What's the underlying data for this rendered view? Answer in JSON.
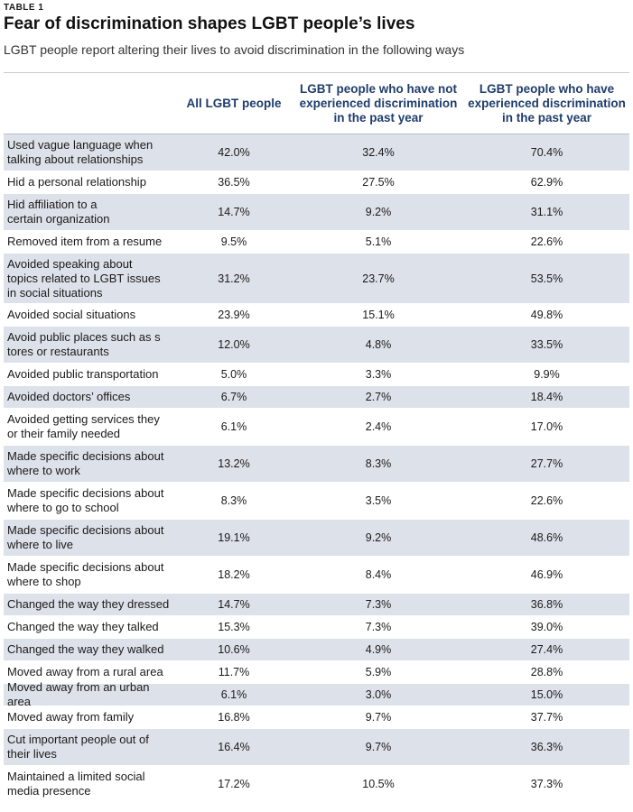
{
  "table_label": "TABLE 1",
  "title": "Fear of discrimination shapes LGBT people’s lives",
  "subtitle": "LGBT people report altering their lives to avoid discrimination in the following ways",
  "columns": {
    "all": "All LGBT people",
    "not_experienced": "LGBT people who have not\nexperienced discrimination\nin the past year",
    "experienced": "LGBT people who have\nexperienced discrimination\nin the past year"
  },
  "colors": {
    "header_text": "#1f3d6b",
    "alt_row": "#dde1e9"
  },
  "rows": [
    {
      "label": "Used vague language when\ntalking about relationships",
      "all": "42.0%",
      "not": "32.4%",
      "exp": "70.4%"
    },
    {
      "label": "Hid a personal relationship",
      "all": "36.5%",
      "not": "27.5%",
      "exp": "62.9%"
    },
    {
      "label": "Hid affiliation to a\ncertain organization",
      "all": "14.7%",
      "not": "9.2%",
      "exp": "31.1%"
    },
    {
      "label": "Removed item from a resume",
      "all": "9.5%",
      "not": "5.1%",
      "exp": "22.6%"
    },
    {
      "label": "Avoided speaking about\ntopics related to LGBT issues\nin social situations",
      "all": "31.2%",
      "not": "23.7%",
      "exp": "53.5%"
    },
    {
      "label": "Avoided social situations",
      "all": "23.9%",
      "not": "15.1%",
      "exp": "49.8%"
    },
    {
      "label": "Avoid public places such as s\ntores or restaurants",
      "all": "12.0%",
      "not": "4.8%",
      "exp": "33.5%"
    },
    {
      "label": "Avoided public transportation",
      "all": "5.0%",
      "not": "3.3%",
      "exp": "9.9%"
    },
    {
      "label": "Avoided doctors’ offices",
      "all": "6.7%",
      "not": "2.7%",
      "exp": "18.4%"
    },
    {
      "label": "Avoided getting services they\nor their family needed",
      "all": "6.1%",
      "not": "2.4%",
      "exp": "17.0%"
    },
    {
      "label": "Made specific decisions about\nwhere to work",
      "all": "13.2%",
      "not": "8.3%",
      "exp": "27.7%"
    },
    {
      "label": "Made specific decisions about\nwhere to go to school",
      "all": "8.3%",
      "not": "3.5%",
      "exp": "22.6%"
    },
    {
      "label": "Made specific decisions about\nwhere to live",
      "all": "19.1%",
      "not": "9.2%",
      "exp": "48.6%"
    },
    {
      "label": "Made specific decisions about\nwhere to shop",
      "all": "18.2%",
      "not": "8.4%",
      "exp": "46.9%"
    },
    {
      "label": "Changed the way they dressed",
      "all": "14.7%",
      "not": "7.3%",
      "exp": "36.8%"
    },
    {
      "label": "Changed the way they talked",
      "all": "15.3%",
      "not": "7.3%",
      "exp": "39.0%"
    },
    {
      "label": "Changed the way they walked",
      "all": "10.6%",
      "not": "4.9%",
      "exp": "27.4%"
    },
    {
      "label": "Moved away from a rural area",
      "all": "11.7%",
      "not": "5.9%",
      "exp": "28.8%"
    },
    {
      "label": "Moved away from an urban area",
      "all": "6.1%",
      "not": "3.0%",
      "exp": "15.0%"
    },
    {
      "label": "Moved away from family",
      "all": "16.8%",
      "not": "9.7%",
      "exp": "37.7%"
    },
    {
      "label": "Cut important people out of\ntheir lives",
      "all": "16.4%",
      "not": "9.7%",
      "exp": "36.3%"
    },
    {
      "label": "Maintained a limited social\n media presence",
      "all": "17.2%",
      "not": "10.5%",
      "exp": "37.3%"
    }
  ]
}
